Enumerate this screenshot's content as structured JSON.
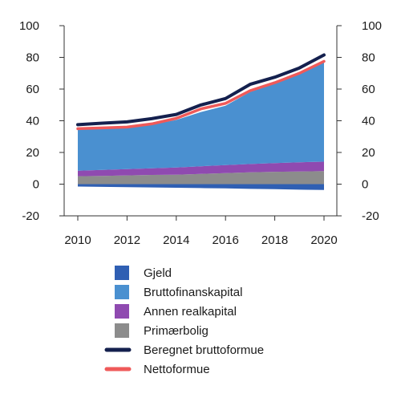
{
  "chart_data": {
    "type": "area",
    "x": [
      2010,
      2011,
      2012,
      2013,
      2014,
      2015,
      2016,
      2017,
      2018,
      2019,
      2020
    ],
    "x_ticks": [
      "2010",
      "2012",
      "2014",
      "2016",
      "2018",
      "2020"
    ],
    "y_ticks": [
      "-20",
      "0",
      "20",
      "40",
      "60",
      "80",
      "100"
    ],
    "y_ticks_right": [
      "-20",
      "0",
      "20",
      "40",
      "60",
      "80",
      "100"
    ],
    "ylim": [
      -20,
      100
    ],
    "xlim": [
      2010,
      2020
    ],
    "grid": false,
    "legend_position": "bottom",
    "stacked_positive": [
      {
        "name": "Primærbolig",
        "color": "#8c8c8c",
        "values": [
          5.0,
          5.2,
          5.5,
          5.8,
          6.0,
          6.5,
          7.0,
          7.5,
          7.8,
          8.0,
          8.2
        ]
      },
      {
        "name": "Annen realkapital",
        "color": "#8f4ab0",
        "values": [
          3.5,
          3.8,
          4.0,
          4.2,
          4.5,
          4.8,
          5.0,
          5.2,
          5.5,
          5.8,
          6.0
        ]
      },
      {
        "name": "Bruttofinanskapital",
        "color": "#4a90d0",
        "values": [
          26.5,
          26.2,
          26.0,
          27.5,
          30.0,
          34.2,
          37.5,
          45.5,
          50.0,
          55.7,
          63.3
        ]
      }
    ],
    "negative_area": {
      "name": "Gjeld",
      "color": "#2f5fb3",
      "values": [
        -1.5,
        -1.7,
        -1.9,
        -2.1,
        -2.3,
        -2.5,
        -2.7,
        -3.0,
        -3.2,
        -3.5,
        -3.7
      ]
    },
    "lines": [
      {
        "name": "Beregnet bruttoformue",
        "color": "#14204e",
        "values": [
          37.5,
          38.5,
          39.3,
          41.3,
          44.0,
          50.0,
          54.0,
          63.0,
          67.5,
          73.3,
          81.5
        ]
      },
      {
        "name": "Nettoformue",
        "color": "#ef5a5a",
        "values": [
          35.0,
          35.5,
          36.0,
          38.0,
          41.5,
          47.5,
          51.0,
          59.0,
          64.0,
          70.0,
          77.5
        ]
      }
    ],
    "legend": [
      {
        "label": "Gjeld",
        "kind": "box",
        "color": "#2f5fb3"
      },
      {
        "label": "Bruttofinanskapital",
        "kind": "box",
        "color": "#4a90d0"
      },
      {
        "label": "Annen realkapital",
        "kind": "box",
        "color": "#8f4ab0"
      },
      {
        "label": "Primærbolig",
        "kind": "box",
        "color": "#8c8c8c"
      },
      {
        "label": "Beregnet bruttoformue",
        "kind": "line",
        "color": "#14204e"
      },
      {
        "label": "Nettoformue",
        "kind": "line",
        "color": "#ef5a5a"
      }
    ]
  }
}
